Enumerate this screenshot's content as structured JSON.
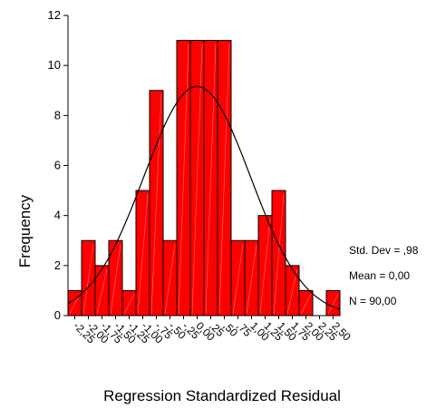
{
  "chart_data": {
    "type": "bar",
    "xlabel": "Regression Standardized Residual",
    "ylabel": "Frequency",
    "ylim": [
      0,
      12
    ],
    "yticks": [
      0,
      2,
      4,
      6,
      8,
      10,
      12
    ],
    "bar_color": "#ff0000",
    "curve_color": "#000000",
    "bin_width": 0.25,
    "categories": [
      "-2,25",
      "-2,00",
      "-1,75",
      "-1,50",
      "-1,25",
      "-1,00",
      "-,75",
      "-,50",
      "-,25",
      "0,00",
      ",25",
      ",50",
      ",75",
      "1,00",
      "1,25",
      "1,50",
      "1,75",
      "2,00",
      "2,25",
      "2,50"
    ],
    "values": [
      1,
      3,
      2,
      3,
      1,
      5,
      9,
      3,
      11,
      11,
      11,
      11,
      3,
      3,
      4,
      5,
      2,
      1,
      0,
      1
    ],
    "normal_curve": {
      "mean": 0.0,
      "std_dev": 0.98,
      "n": 90
    }
  },
  "stats": {
    "std_dev": "Std. Dev = ,98",
    "mean": "Mean = 0,00",
    "n": "N = 90,00"
  }
}
